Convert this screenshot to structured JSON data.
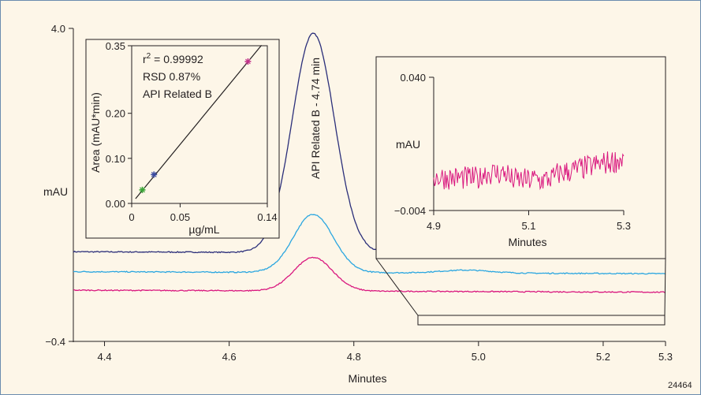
{
  "chart_data": [
    {
      "type": "line",
      "title": "",
      "xlabel": "Minutes",
      "ylabel": "mAU",
      "xlim": [
        4.35,
        5.3
      ],
      "ylim": [
        -0.4,
        4.0
      ],
      "xticks": [
        "4.4",
        "4.6",
        "4.8",
        "5.0",
        "5.2",
        "5.3"
      ],
      "yticks": [
        "4.0",
        "−0.4"
      ],
      "peak_label": "API Related B - 4.74 min",
      "series": [
        {
          "color": "#2b2f7a",
          "baseline": 0.86,
          "peak_height": 3.08,
          "peak_x": 4.735,
          "peak_sigma": 0.034,
          "minor_peak_height": 0.11,
          "minor_peak_x": 4.98
        },
        {
          "color": "#2aa6e0",
          "baseline": 0.58,
          "peak_height": 0.82,
          "peak_x": 4.735,
          "peak_sigma": 0.032,
          "minor_peak_height": 0.04,
          "minor_peak_x": 4.98
        },
        {
          "color": "#d9187f",
          "baseline": 0.32,
          "peak_height": 0.47,
          "peak_x": 4.735,
          "peak_sigma": 0.031,
          "minor_peak_height": 0.0,
          "minor_peak_x": 4.98
        }
      ],
      "figure_id": "24464"
    },
    {
      "type": "scatter",
      "xlabel": "µg/mL",
      "ylabel": "Area (mAU*min)",
      "xlim": [
        0,
        0.14
      ],
      "ylim": [
        0,
        0.35
      ],
      "xticks": [
        "0",
        "0.05",
        "0.14"
      ],
      "yticks": [
        "0.35",
        "0.20",
        "0.10",
        "0.00"
      ],
      "annotation_r2_prefix": "r",
      "annotation_r2_exp": "2",
      "annotation_r2_value": " = 0.99992",
      "annotation_rsd": "RSD 0.87%",
      "annotation_name": "API Related B",
      "points": [
        {
          "x": 0.011,
          "y": 0.03,
          "color": "#3aa537"
        },
        {
          "x": 0.023,
          "y": 0.064,
          "color": "#3a4aa0"
        },
        {
          "x": 0.12,
          "y": 0.315,
          "color": "#c2338a"
        }
      ],
      "fit": {
        "slope": 2.62,
        "intercept": 0.0
      }
    },
    {
      "type": "line",
      "xlabel": "Minutes",
      "ylabel": "mAU",
      "xlim": [
        4.9,
        5.3
      ],
      "ylim": [
        -0.004,
        0.04
      ],
      "xticks": [
        "4.9",
        "5.1",
        "5.3"
      ],
      "yticks": [
        "0.040",
        "−0.004"
      ],
      "series": [
        {
          "color": "#d9187f",
          "start": 4.9,
          "end": 5.3,
          "mean_start": 0.007,
          "mean_mid": 0.006,
          "mean_end": 0.013,
          "noise": 0.004
        }
      ]
    }
  ]
}
